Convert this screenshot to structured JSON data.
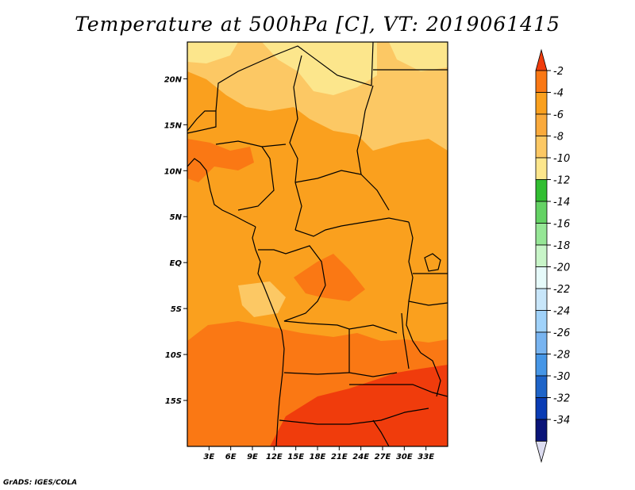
{
  "title": "Temperature at 500hPa [C], VT: 2019061415",
  "credit": "GrADS: IGES/COLA",
  "map": {
    "lon_range": [
      0,
      36
    ],
    "lat_range": [
      -20,
      24
    ],
    "lat_ticks": [
      {
        "lat": 20,
        "label": "20N"
      },
      {
        "lat": 15,
        "label": "15N"
      },
      {
        "lat": 10,
        "label": "10N"
      },
      {
        "lat": 5,
        "label": "5N"
      },
      {
        "lat": 0,
        "label": "EQ"
      },
      {
        "lat": -5,
        "label": "5S"
      },
      {
        "lat": -10,
        "label": "10S"
      },
      {
        "lat": -15,
        "label": "15S"
      }
    ],
    "lon_ticks": [
      {
        "lon": 3,
        "label": "3E"
      },
      {
        "lon": 6,
        "label": "6E"
      },
      {
        "lon": 9,
        "label": "9E"
      },
      {
        "lon": 12,
        "label": "12E"
      },
      {
        "lon": 15,
        "label": "15E"
      },
      {
        "lon": 18,
        "label": "18E"
      },
      {
        "lon": 21,
        "label": "21E"
      },
      {
        "lon": 24,
        "label": "24E"
      },
      {
        "lon": 27,
        "label": "27E"
      },
      {
        "lon": 30,
        "label": "30E"
      },
      {
        "lon": 33,
        "label": "33E"
      }
    ],
    "fill_colors": {
      "warm": "#f03c0c",
      "medium": "#fa7814",
      "base": "#faa01e",
      "cool": "#fcc864",
      "coolest": "#fce68c"
    }
  },
  "legend": {
    "labels": [
      "-2",
      "-4",
      "-6",
      "-8",
      "-10",
      "-12",
      "-14",
      "-16",
      "-18",
      "-20",
      "-22",
      "-24",
      "-26",
      "-28",
      "-30",
      "-32",
      "-34"
    ],
    "top_color": "#f03c0c",
    "bottom_color": "#dcdcf0",
    "colors": [
      "#fa7814",
      "#faa01e",
      "#faaa3c",
      "#fcc864",
      "#fce68c",
      "#32be32",
      "#64d264",
      "#96e696",
      "#c8f5c8",
      "#e6fafa",
      "#c8e6fa",
      "#a0d2fa",
      "#78b4f0",
      "#4696e6",
      "#1e64c8",
      "#0a3cb4",
      "#0a1478"
    ]
  }
}
